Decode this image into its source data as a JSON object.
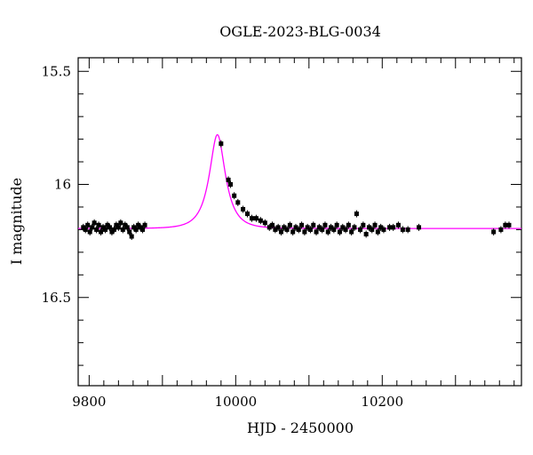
{
  "chart_data": {
    "type": "scatter",
    "title": "OGLE-2023-BLG-0034",
    "xlabel": "HJD - 2450000",
    "ylabel": "I magnitude",
    "xlim": [
      9785,
      10390
    ],
    "ylim": [
      15.44,
      16.89
    ],
    "y_inverted": true,
    "x_ticks": [
      9800,
      10000,
      10200
    ],
    "x_tick_labels": [
      "9800",
      "10000",
      "10200"
    ],
    "y_ticks": [
      15.5,
      16,
      16.5
    ],
    "y_tick_labels": [
      "15.5",
      "16",
      "16.5"
    ],
    "grid": false,
    "colors": {
      "points": "#000000",
      "model": "#ff00ff",
      "axes": "#000000"
    },
    "model": {
      "name": "",
      "baseline_mag": 16.195,
      "peak_mag": 15.78,
      "t0": 9975,
      "u0": 0.52,
      "tE": 22
    },
    "series": [
      {
        "name": "",
        "points": [
          [
            9792,
            16.19
          ],
          [
            9795,
            16.2
          ],
          [
            9798,
            16.18
          ],
          [
            9801,
            16.21
          ],
          [
            9804,
            16.19
          ],
          [
            9807,
            16.17
          ],
          [
            9810,
            16.2
          ],
          [
            9813,
            16.18
          ],
          [
            9816,
            16.21
          ],
          [
            9819,
            16.19
          ],
          [
            9822,
            16.2
          ],
          [
            9825,
            16.18
          ],
          [
            9828,
            16.19
          ],
          [
            9831,
            16.21
          ],
          [
            9834,
            16.2
          ],
          [
            9837,
            16.18
          ],
          [
            9840,
            16.19
          ],
          [
            9843,
            16.17
          ],
          [
            9846,
            16.2
          ],
          [
            9849,
            16.18
          ],
          [
            9852,
            16.19
          ],
          [
            9855,
            16.21
          ],
          [
            9858,
            16.23
          ],
          [
            9861,
            16.19
          ],
          [
            9864,
            16.2
          ],
          [
            9867,
            16.18
          ],
          [
            9870,
            16.19
          ],
          [
            9873,
            16.2
          ],
          [
            9876,
            16.18
          ],
          [
            9980,
            15.82
          ],
          [
            9990,
            15.98
          ],
          [
            9993,
            16.0
          ],
          [
            9998,
            16.05
          ],
          [
            10003,
            16.08
          ],
          [
            10010,
            16.11
          ],
          [
            10016,
            16.13
          ],
          [
            10022,
            16.15
          ],
          [
            10028,
            16.15
          ],
          [
            10034,
            16.16
          ],
          [
            10040,
            16.17
          ],
          [
            10046,
            16.19
          ],
          [
            10050,
            16.18
          ],
          [
            10054,
            16.2
          ],
          [
            10058,
            16.19
          ],
          [
            10062,
            16.21
          ],
          [
            10066,
            16.19
          ],
          [
            10070,
            16.2
          ],
          [
            10074,
            16.18
          ],
          [
            10078,
            16.21
          ],
          [
            10082,
            16.19
          ],
          [
            10086,
            16.2
          ],
          [
            10090,
            16.18
          ],
          [
            10094,
            16.21
          ],
          [
            10098,
            16.19
          ],
          [
            10102,
            16.2
          ],
          [
            10106,
            16.18
          ],
          [
            10110,
            16.21
          ],
          [
            10114,
            16.19
          ],
          [
            10118,
            16.2
          ],
          [
            10122,
            16.18
          ],
          [
            10126,
            16.21
          ],
          [
            10130,
            16.19
          ],
          [
            10134,
            16.2
          ],
          [
            10138,
            16.18
          ],
          [
            10142,
            16.21
          ],
          [
            10146,
            16.19
          ],
          [
            10150,
            16.2
          ],
          [
            10154,
            16.18
          ],
          [
            10158,
            16.21
          ],
          [
            10162,
            16.19
          ],
          [
            10165,
            16.13
          ],
          [
            10170,
            16.2
          ],
          [
            10174,
            16.18
          ],
          [
            10178,
            16.22
          ],
          [
            10182,
            16.19
          ],
          [
            10186,
            16.2
          ],
          [
            10190,
            16.18
          ],
          [
            10194,
            16.21
          ],
          [
            10198,
            16.19
          ],
          [
            10202,
            16.2
          ],
          [
            10210,
            16.19
          ],
          [
            10215,
            16.19
          ],
          [
            10222,
            16.18
          ],
          [
            10228,
            16.2
          ],
          [
            10235,
            16.2
          ],
          [
            10250,
            16.19
          ],
          [
            10352,
            16.21
          ],
          [
            10362,
            16.2
          ],
          [
            10368,
            16.18
          ],
          [
            10373,
            16.18
          ]
        ]
      }
    ]
  }
}
